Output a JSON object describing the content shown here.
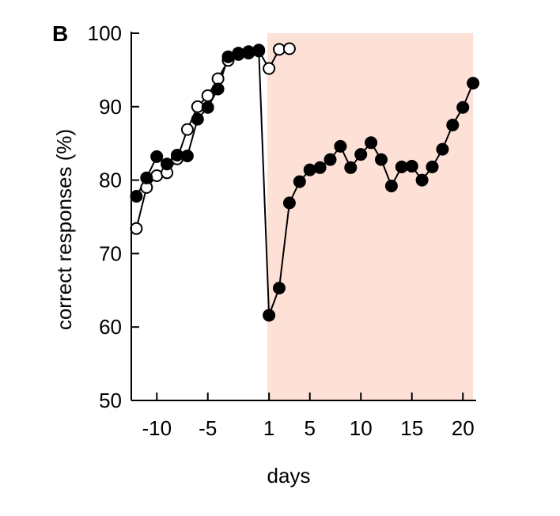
{
  "panel_label": "B",
  "colors": {
    "shaded_region": "#fde0d6",
    "filled_marker": "#000000",
    "open_marker": "#ffffff",
    "line": "#000000"
  },
  "chart_data": {
    "type": "line",
    "xlabel": "days",
    "ylabel": "correct responses (%)",
    "ylim": [
      50,
      100
    ],
    "y_ticks": [
      50,
      60,
      70,
      80,
      90,
      100
    ],
    "x_ticks": [
      -10,
      -5,
      1,
      5,
      10,
      15,
      20
    ],
    "grid": false,
    "shaded_region": {
      "from": 1,
      "to": 21
    },
    "series": [
      {
        "marker": "filled",
        "x": [
          -12,
          -11,
          -10,
          -9,
          -8,
          -7,
          -6,
          -5,
          -4,
          -3,
          -2,
          -1,
          0,
          1,
          2,
          3,
          4,
          5,
          6,
          7,
          8,
          9,
          10,
          11,
          12,
          13,
          14,
          15,
          16,
          17,
          18,
          19,
          20,
          21
        ],
        "values": [
          77.8,
          80.3,
          83.2,
          82.2,
          83.4,
          83.3,
          88.3,
          89.9,
          92.4,
          96.8,
          97.3,
          97.5,
          97.7,
          61.6,
          65.3,
          76.9,
          79.8,
          81.4,
          81.7,
          82.8,
          84.6,
          81.7,
          83.5,
          85.1,
          82.8,
          79.2,
          81.8,
          81.9,
          80.0,
          81.8,
          84.2,
          87.5,
          89.9,
          93.2
        ]
      },
      {
        "marker": "open",
        "x": [
          -12,
          -11,
          -10,
          -9,
          -8,
          -7,
          -6,
          -5,
          -4,
          -3,
          -2,
          -1,
          0,
          1,
          2,
          3
        ],
        "values": [
          73.4,
          79.0,
          80.6,
          81.0,
          82.9,
          86.9,
          90.0,
          91.5,
          93.8,
          96.3,
          97.1,
          97.3,
          97.6,
          95.2,
          97.8,
          97.9
        ]
      }
    ]
  }
}
